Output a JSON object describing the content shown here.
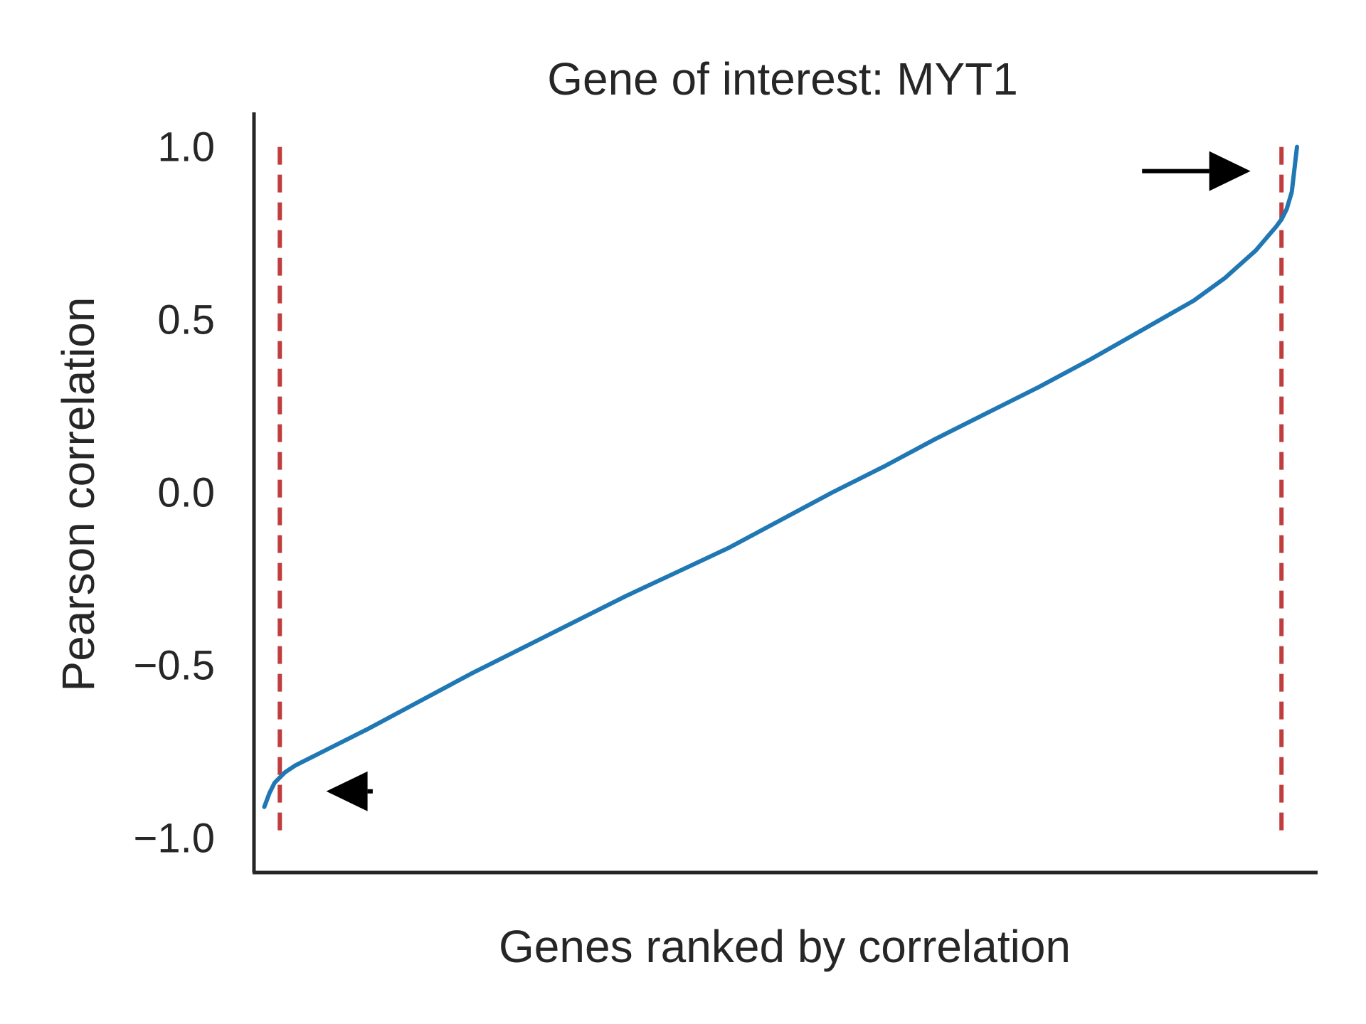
{
  "chart_data": {
    "type": "line",
    "title": "Gene of interest: MYT1",
    "xlabel": "Genes ranked by correlation",
    "ylabel": "Pearson correlation",
    "xlim": [
      -1,
      102
    ],
    "ylim": [
      -1.1,
      1.1
    ],
    "y_ticks": [
      {
        "value": -1.0,
        "label": "−1.0"
      },
      {
        "value": -0.5,
        "label": "−0.5"
      },
      {
        "value": 0.0,
        "label": "0.0"
      },
      {
        "value": 0.5,
        "label": "0.5"
      },
      {
        "value": 1.0,
        "label": "1.0"
      }
    ],
    "x_ticks": [],
    "grid": false,
    "series": [
      {
        "color": "#1f77b4",
        "x": [
          0,
          0.5,
          1,
          1.5,
          2,
          3,
          4,
          5,
          6,
          8,
          10,
          15,
          20,
          25,
          30,
          35,
          40,
          45,
          50,
          55,
          60,
          65,
          70,
          75,
          80,
          85,
          90,
          93,
          96,
          98,
          98.5,
          99,
          99.5,
          100
        ],
        "y": [
          -0.91,
          -0.87,
          -0.84,
          -0.825,
          -0.81,
          -0.79,
          -0.775,
          -0.76,
          -0.745,
          -0.715,
          -0.685,
          -0.605,
          -0.525,
          -0.45,
          -0.375,
          -0.3,
          -0.23,
          -0.16,
          -0.08,
          0.0,
          0.075,
          0.155,
          0.23,
          0.305,
          0.385,
          0.47,
          0.555,
          0.62,
          0.7,
          0.77,
          0.79,
          0.82,
          0.87,
          1.0
        ]
      }
    ],
    "vlines": [
      {
        "x": 1.5,
        "color": "#c03d3e",
        "style": "dashed"
      },
      {
        "x": 98.5,
        "color": "#c03d3e",
        "style": "dashed"
      }
    ],
    "annotations": [
      {
        "type": "arrow",
        "direction": "left",
        "x": 10.5,
        "y": -0.865,
        "to_x": 6
      },
      {
        "type": "arrow",
        "direction": "right",
        "x": 85,
        "y": 0.93,
        "to_x": 95.5
      }
    ]
  }
}
